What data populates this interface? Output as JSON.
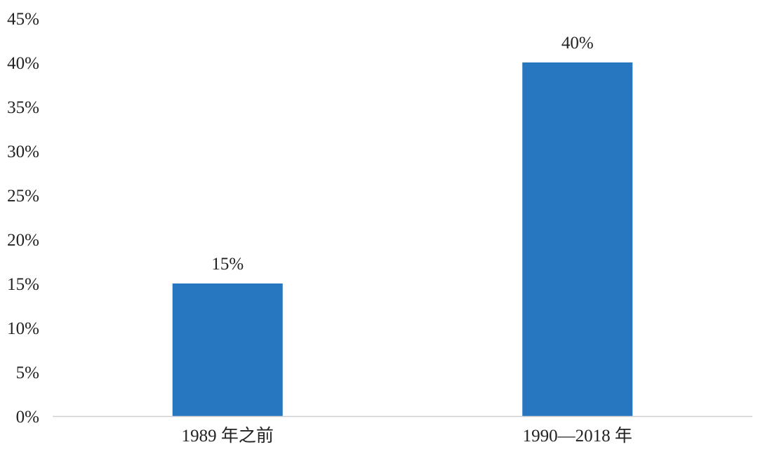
{
  "chart_data": {
    "type": "bar",
    "categories": [
      "1989 年之前",
      "1990—2018 年"
    ],
    "values": [
      15,
      40
    ],
    "data_labels": [
      "15%",
      "40%"
    ],
    "title": "",
    "xlabel": "",
    "ylabel": "",
    "ylim": [
      0,
      45
    ],
    "y_ticks": [
      0,
      5,
      10,
      15,
      20,
      25,
      30,
      35,
      40,
      45
    ],
    "y_tick_labels": [
      "0%",
      "5%",
      "10%",
      "15%",
      "20%",
      "25%",
      "30%",
      "35%",
      "40%",
      "45%"
    ],
    "grid": false,
    "legend": "none",
    "bar_color": "#2677BF",
    "axis_color": "#D0D0D0"
  }
}
